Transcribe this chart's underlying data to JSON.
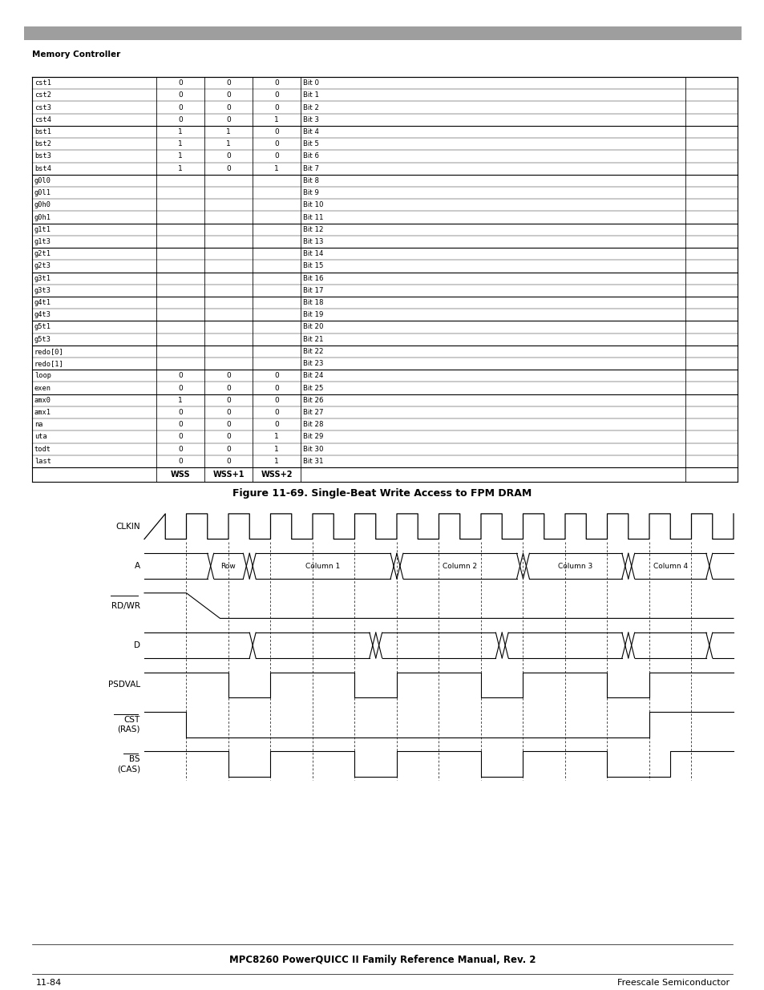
{
  "page_title": "Memory Controller",
  "fig_caption": "Figure 11-69. Single-Beat Write Access to FPM DRAM",
  "footer_center": "MPC8260 PowerQUICC II Family Reference Manual, Rev. 2",
  "footer_left": "11-84",
  "footer_right": "Freescale Semiconductor",
  "header_bar_color": "#9e9e9e",
  "table_rows": [
    [
      "cst1",
      "0",
      "0",
      "0",
      "Bit 0"
    ],
    [
      "cst2",
      "0",
      "0",
      "0",
      "Bit 1"
    ],
    [
      "cst3",
      "0",
      "0",
      "0",
      "Bit 2"
    ],
    [
      "cst4",
      "0",
      "0",
      "1",
      "Bit 3"
    ],
    [
      "bst1",
      "1",
      "1",
      "0",
      "Bit 4"
    ],
    [
      "bst2",
      "1",
      "1",
      "0",
      "Bit 5"
    ],
    [
      "bst3",
      "1",
      "0",
      "0",
      "Bit 6"
    ],
    [
      "bst4",
      "1",
      "0",
      "1",
      "Bit 7"
    ],
    [
      "g0l0",
      "",
      "",
      "",
      "Bit 8"
    ],
    [
      "g0l1",
      "",
      "",
      "",
      "Bit 9"
    ],
    [
      "g0h0",
      "",
      "",
      "",
      "Bit 10"
    ],
    [
      "g0h1",
      "",
      "",
      "",
      "Bit 11"
    ],
    [
      "g1t1",
      "",
      "",
      "",
      "Bit 12"
    ],
    [
      "g1t3",
      "",
      "",
      "",
      "Bit 13"
    ],
    [
      "g2t1",
      "",
      "",
      "",
      "Bit 14"
    ],
    [
      "g2t3",
      "",
      "",
      "",
      "Bit 15"
    ],
    [
      "g3t1",
      "",
      "",
      "",
      "Bit 16"
    ],
    [
      "g3t3",
      "",
      "",
      "",
      "Bit 17"
    ],
    [
      "g4t1",
      "",
      "",
      "",
      "Bit 18"
    ],
    [
      "g4t3",
      "",
      "",
      "",
      "Bit 19"
    ],
    [
      "g5t1",
      "",
      "",
      "",
      "Bit 20"
    ],
    [
      "g5t3",
      "",
      "",
      "",
      "Bit 21"
    ],
    [
      "redo[0]",
      "",
      "",
      "",
      "Bit 22"
    ],
    [
      "redo[1]",
      "",
      "",
      "",
      "Bit 23"
    ],
    [
      "loop",
      "0",
      "0",
      "0",
      "Bit 24"
    ],
    [
      "exen",
      "0",
      "0",
      "0",
      "Bit 25"
    ],
    [
      "amx0",
      "1",
      "0",
      "0",
      "Bit 26"
    ],
    [
      "amx1",
      "0",
      "0",
      "0",
      "Bit 27"
    ],
    [
      "na",
      "0",
      "0",
      "0",
      "Bit 28"
    ],
    [
      "uta",
      "0",
      "0",
      "1",
      "Bit 29"
    ],
    [
      "todt",
      "0",
      "0",
      "1",
      "Bit 30"
    ],
    [
      "last",
      "0",
      "0",
      "1",
      "Bit 31"
    ]
  ],
  "group_top_borders": [
    0,
    4,
    8,
    12,
    14,
    16,
    18,
    20,
    22,
    24,
    26
  ],
  "num_clocks": 14,
  "A_segments": [
    [
      1.5,
      2.5,
      "Row"
    ],
    [
      2.5,
      6.0,
      "Column 1"
    ],
    [
      6.0,
      9.0,
      "Column 2"
    ],
    [
      9.0,
      11.5,
      "Column 3"
    ],
    [
      11.5,
      13.5,
      "Column 4"
    ]
  ]
}
